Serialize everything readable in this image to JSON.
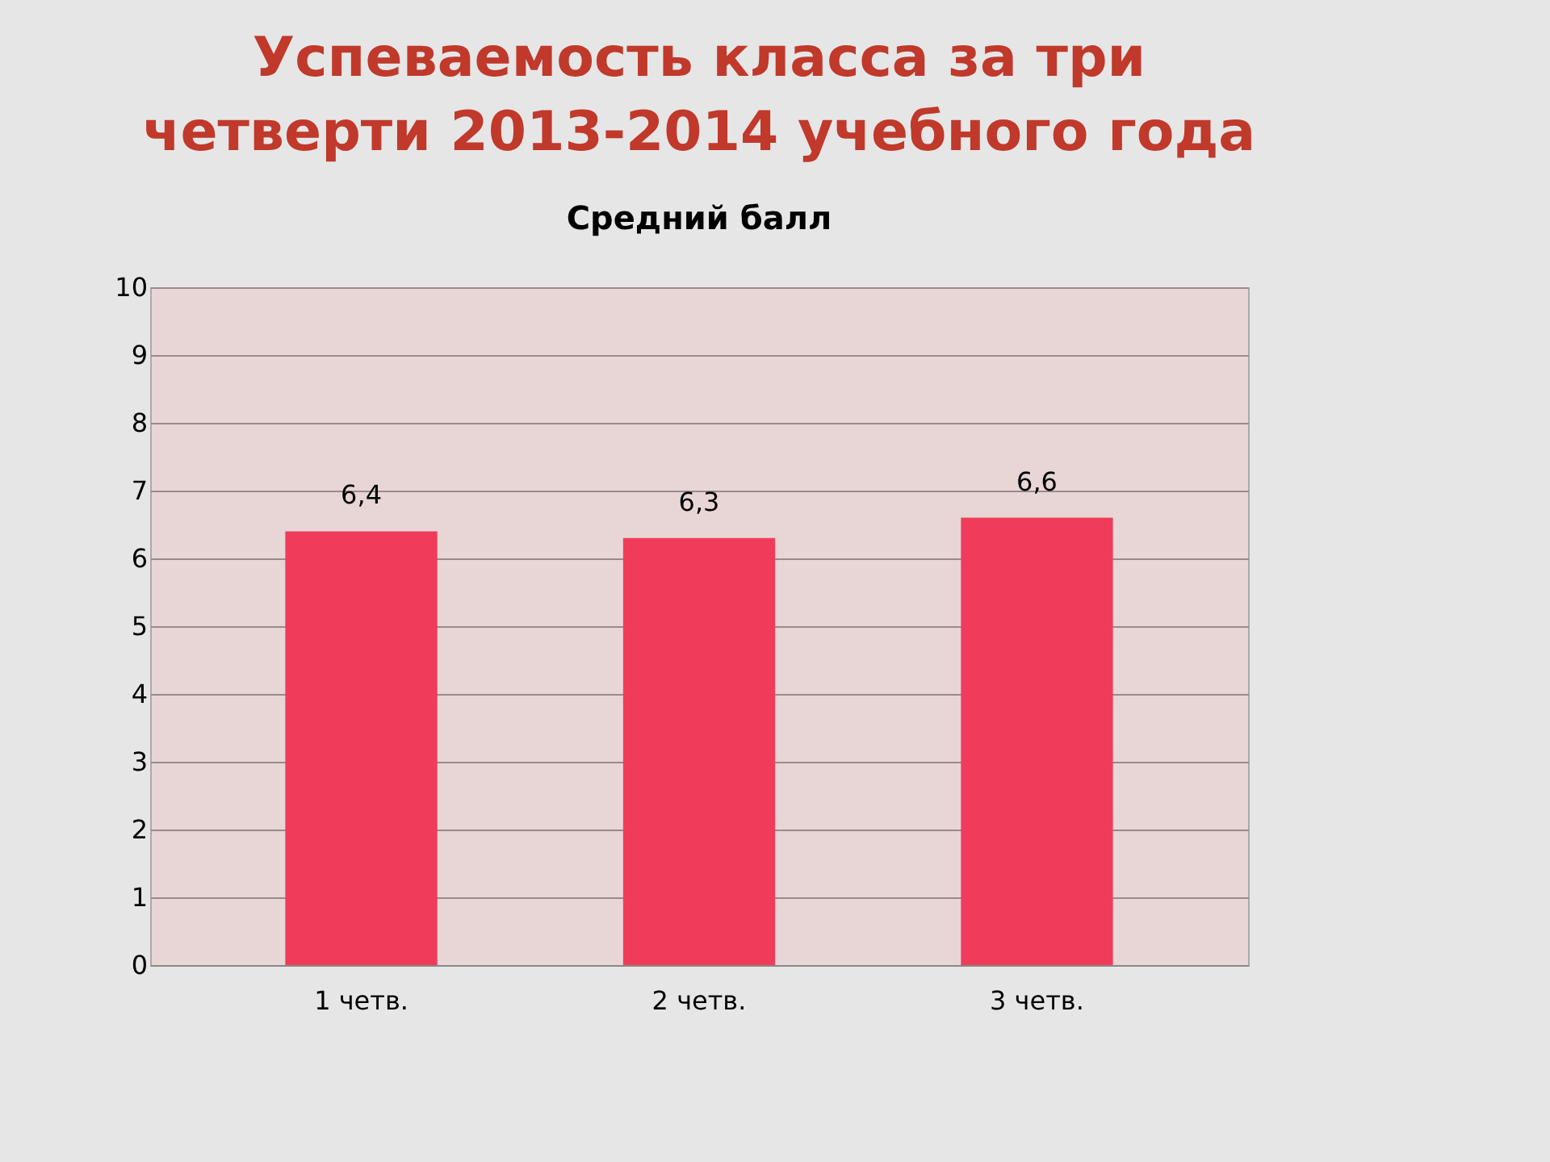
{
  "chart_data": {
    "type": "bar",
    "title": "Успеваемость класса за три четверти 2013-2014 учебного года",
    "subtitle": "Средний балл",
    "categories": [
      "1 четв.",
      "2 четв.",
      "3 четв."
    ],
    "values": [
      6.4,
      6.3,
      6.6
    ],
    "value_labels": [
      "6,4",
      "6,3",
      "6,6"
    ],
    "color": "#f03c5a",
    "ylim": [
      0,
      10
    ],
    "yticks": [
      0,
      1,
      2,
      3,
      4,
      5,
      6,
      7,
      8,
      9,
      10
    ],
    "grid": true
  }
}
